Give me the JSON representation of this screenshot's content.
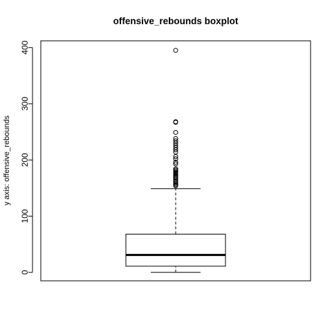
{
  "chart_data": {
    "type": "boxplot",
    "title": "offensive_rebounds boxplot",
    "xlabel": "",
    "ylabel": "y axis: offensive_rebounds",
    "ylim": [
      -15,
      412
    ],
    "y_ticks": [
      0,
      100,
      200,
      300,
      400
    ],
    "grid": false,
    "series": [
      {
        "min": 0,
        "q1": 11,
        "median": 31,
        "q3": 68,
        "whisker_high": 149,
        "outliers": [
          154,
          156,
          158,
          160,
          162,
          165,
          168,
          170,
          172,
          174,
          176,
          178,
          180,
          182,
          184,
          193,
          196,
          202,
          206,
          214,
          218,
          222,
          226,
          230,
          234,
          238,
          249,
          267,
          268,
          395
        ]
      }
    ],
    "colors": {
      "stroke": "#000000",
      "background": "#ffffff"
    }
  }
}
